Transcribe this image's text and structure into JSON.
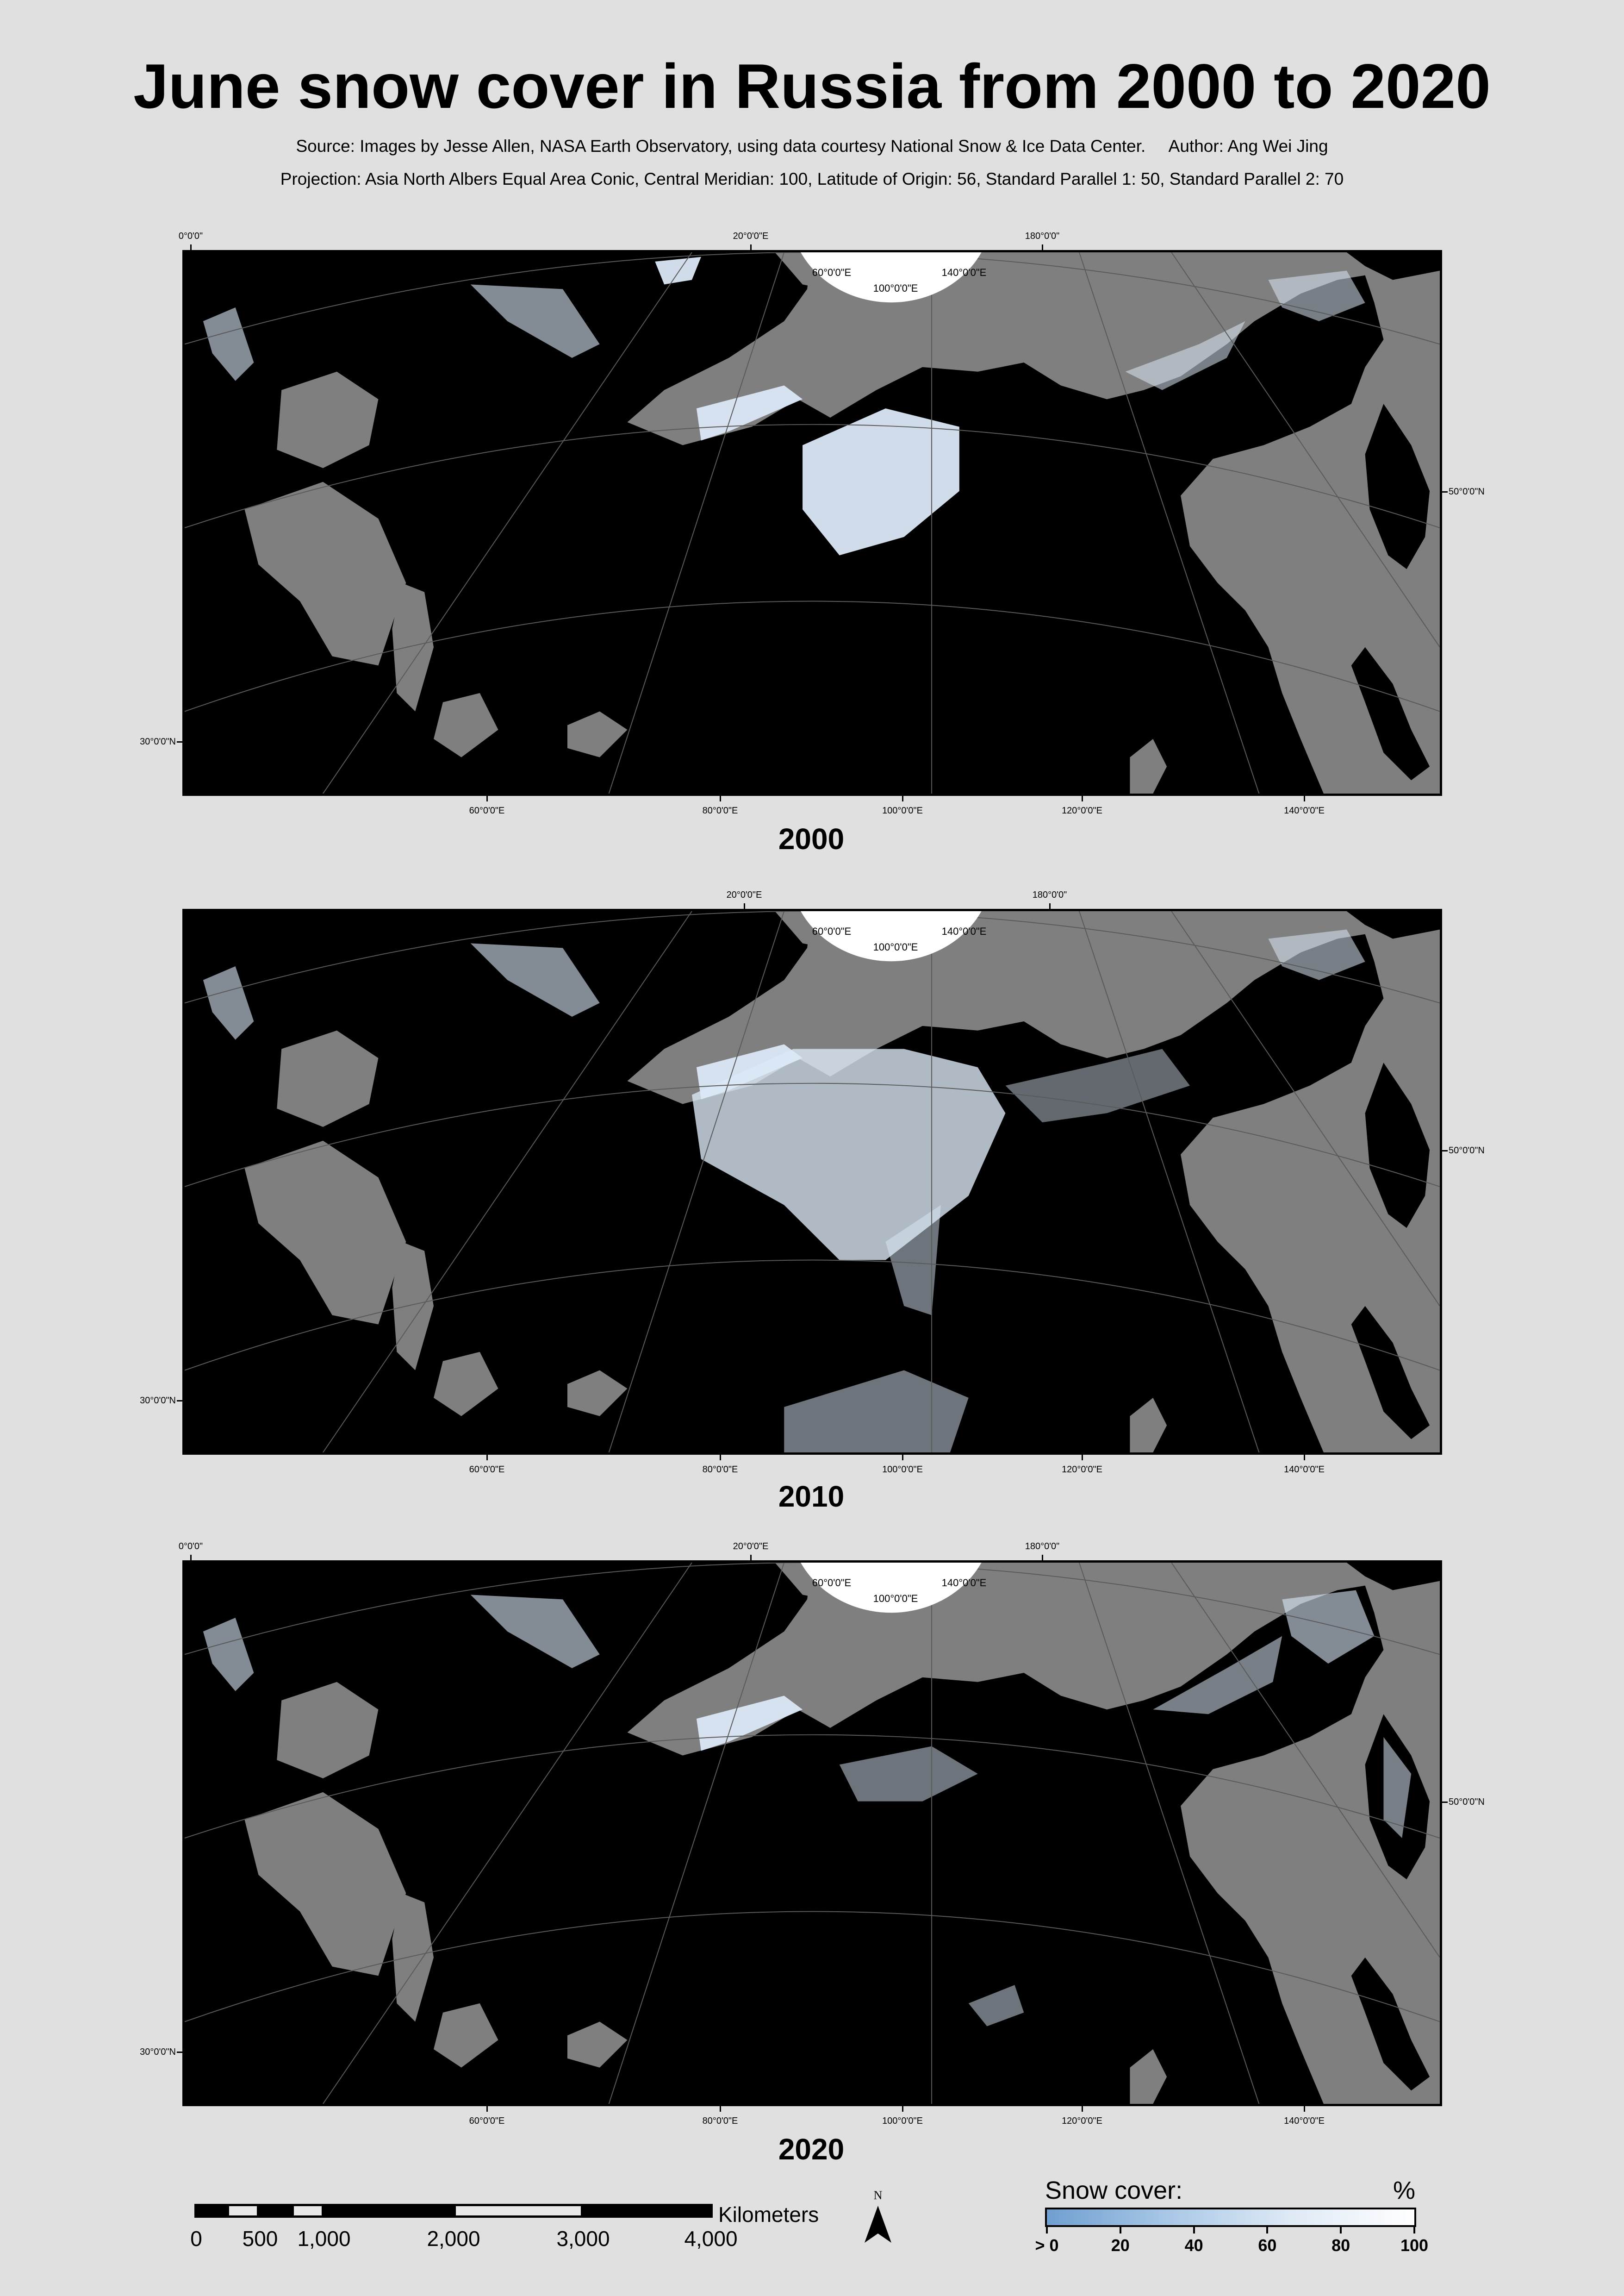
{
  "title": "June snow cover in Russia from 2000 to 2020",
  "source_line": "Source: Images by Jesse Allen, NASA Earth Observatory, using data courtesy National Snow & Ice Data Center.",
  "author_line": "Author: Ang Wei Jing",
  "projection_line": "Projection: Asia North Albers Equal Area Conic, Central Meridian: 100, Latitude of Origin: 56, Standard Parallel 1: 50, Standard Parallel 2: 70",
  "maps": [
    {
      "year": "2000",
      "top_labels": [
        "0°0'0\"",
        "20°0'0\"E",
        "180°0'0\""
      ],
      "inner_labels": [
        "60°0'0\"E",
        "140°0'0\"E",
        "100°0'0\"E"
      ],
      "bottom_labels": [
        "60°0'0\"E",
        "80°0'0\"E",
        "100°0'0\"E",
        "120°0'0\"E",
        "140°0'0\"E"
      ],
      "left_label": "30°0'0\"N",
      "right_label": "50°0'0\"N"
    },
    {
      "year": "2010",
      "top_labels": [
        "20°0'0\"E",
        "180°0'0\""
      ],
      "inner_labels": [
        "60°0'0\"E",
        "140°0'0\"E",
        "100°0'0\"E"
      ],
      "bottom_labels": [
        "60°0'0\"E",
        "80°0'0\"E",
        "100°0'0\"E",
        "120°0'0\"E",
        "140°0'0\"E"
      ],
      "left_label": "30°0'0\"N",
      "right_label": "50°0'0\"N"
    },
    {
      "year": "2020",
      "top_labels": [
        "0°0'0\"",
        "20°0'0\"E",
        "180°0'0\""
      ],
      "inner_labels": [
        "60°0'0\"E",
        "140°0'0\"E",
        "100°0'0\"E"
      ],
      "bottom_labels": [
        "60°0'0\"E",
        "80°0'0\"E",
        "100°0'0\"E",
        "120°0'0\"E",
        "140°0'0\"E"
      ],
      "left_label": "30°0'0\"N",
      "right_label": "50°0'0\"N"
    }
  ],
  "scale_bar": {
    "labels": [
      "0",
      "500",
      "1,000",
      "2,000",
      "3,000",
      "4,000"
    ],
    "unit": "Kilometers"
  },
  "north_arrow": {
    "label": "N",
    "icon": "north-arrow-icon"
  },
  "legend": {
    "title": "Snow cover:",
    "unit": "%",
    "ticks": [
      "> 0",
      "20",
      "40",
      "60",
      "80",
      "100"
    ],
    "color_low": "#6f9fd0",
    "color_high": "#ffffff"
  },
  "colors": {
    "land": "#000000",
    "water": "#7f7f7f",
    "background": "#e0e0e0",
    "snow": "#ffffff"
  }
}
